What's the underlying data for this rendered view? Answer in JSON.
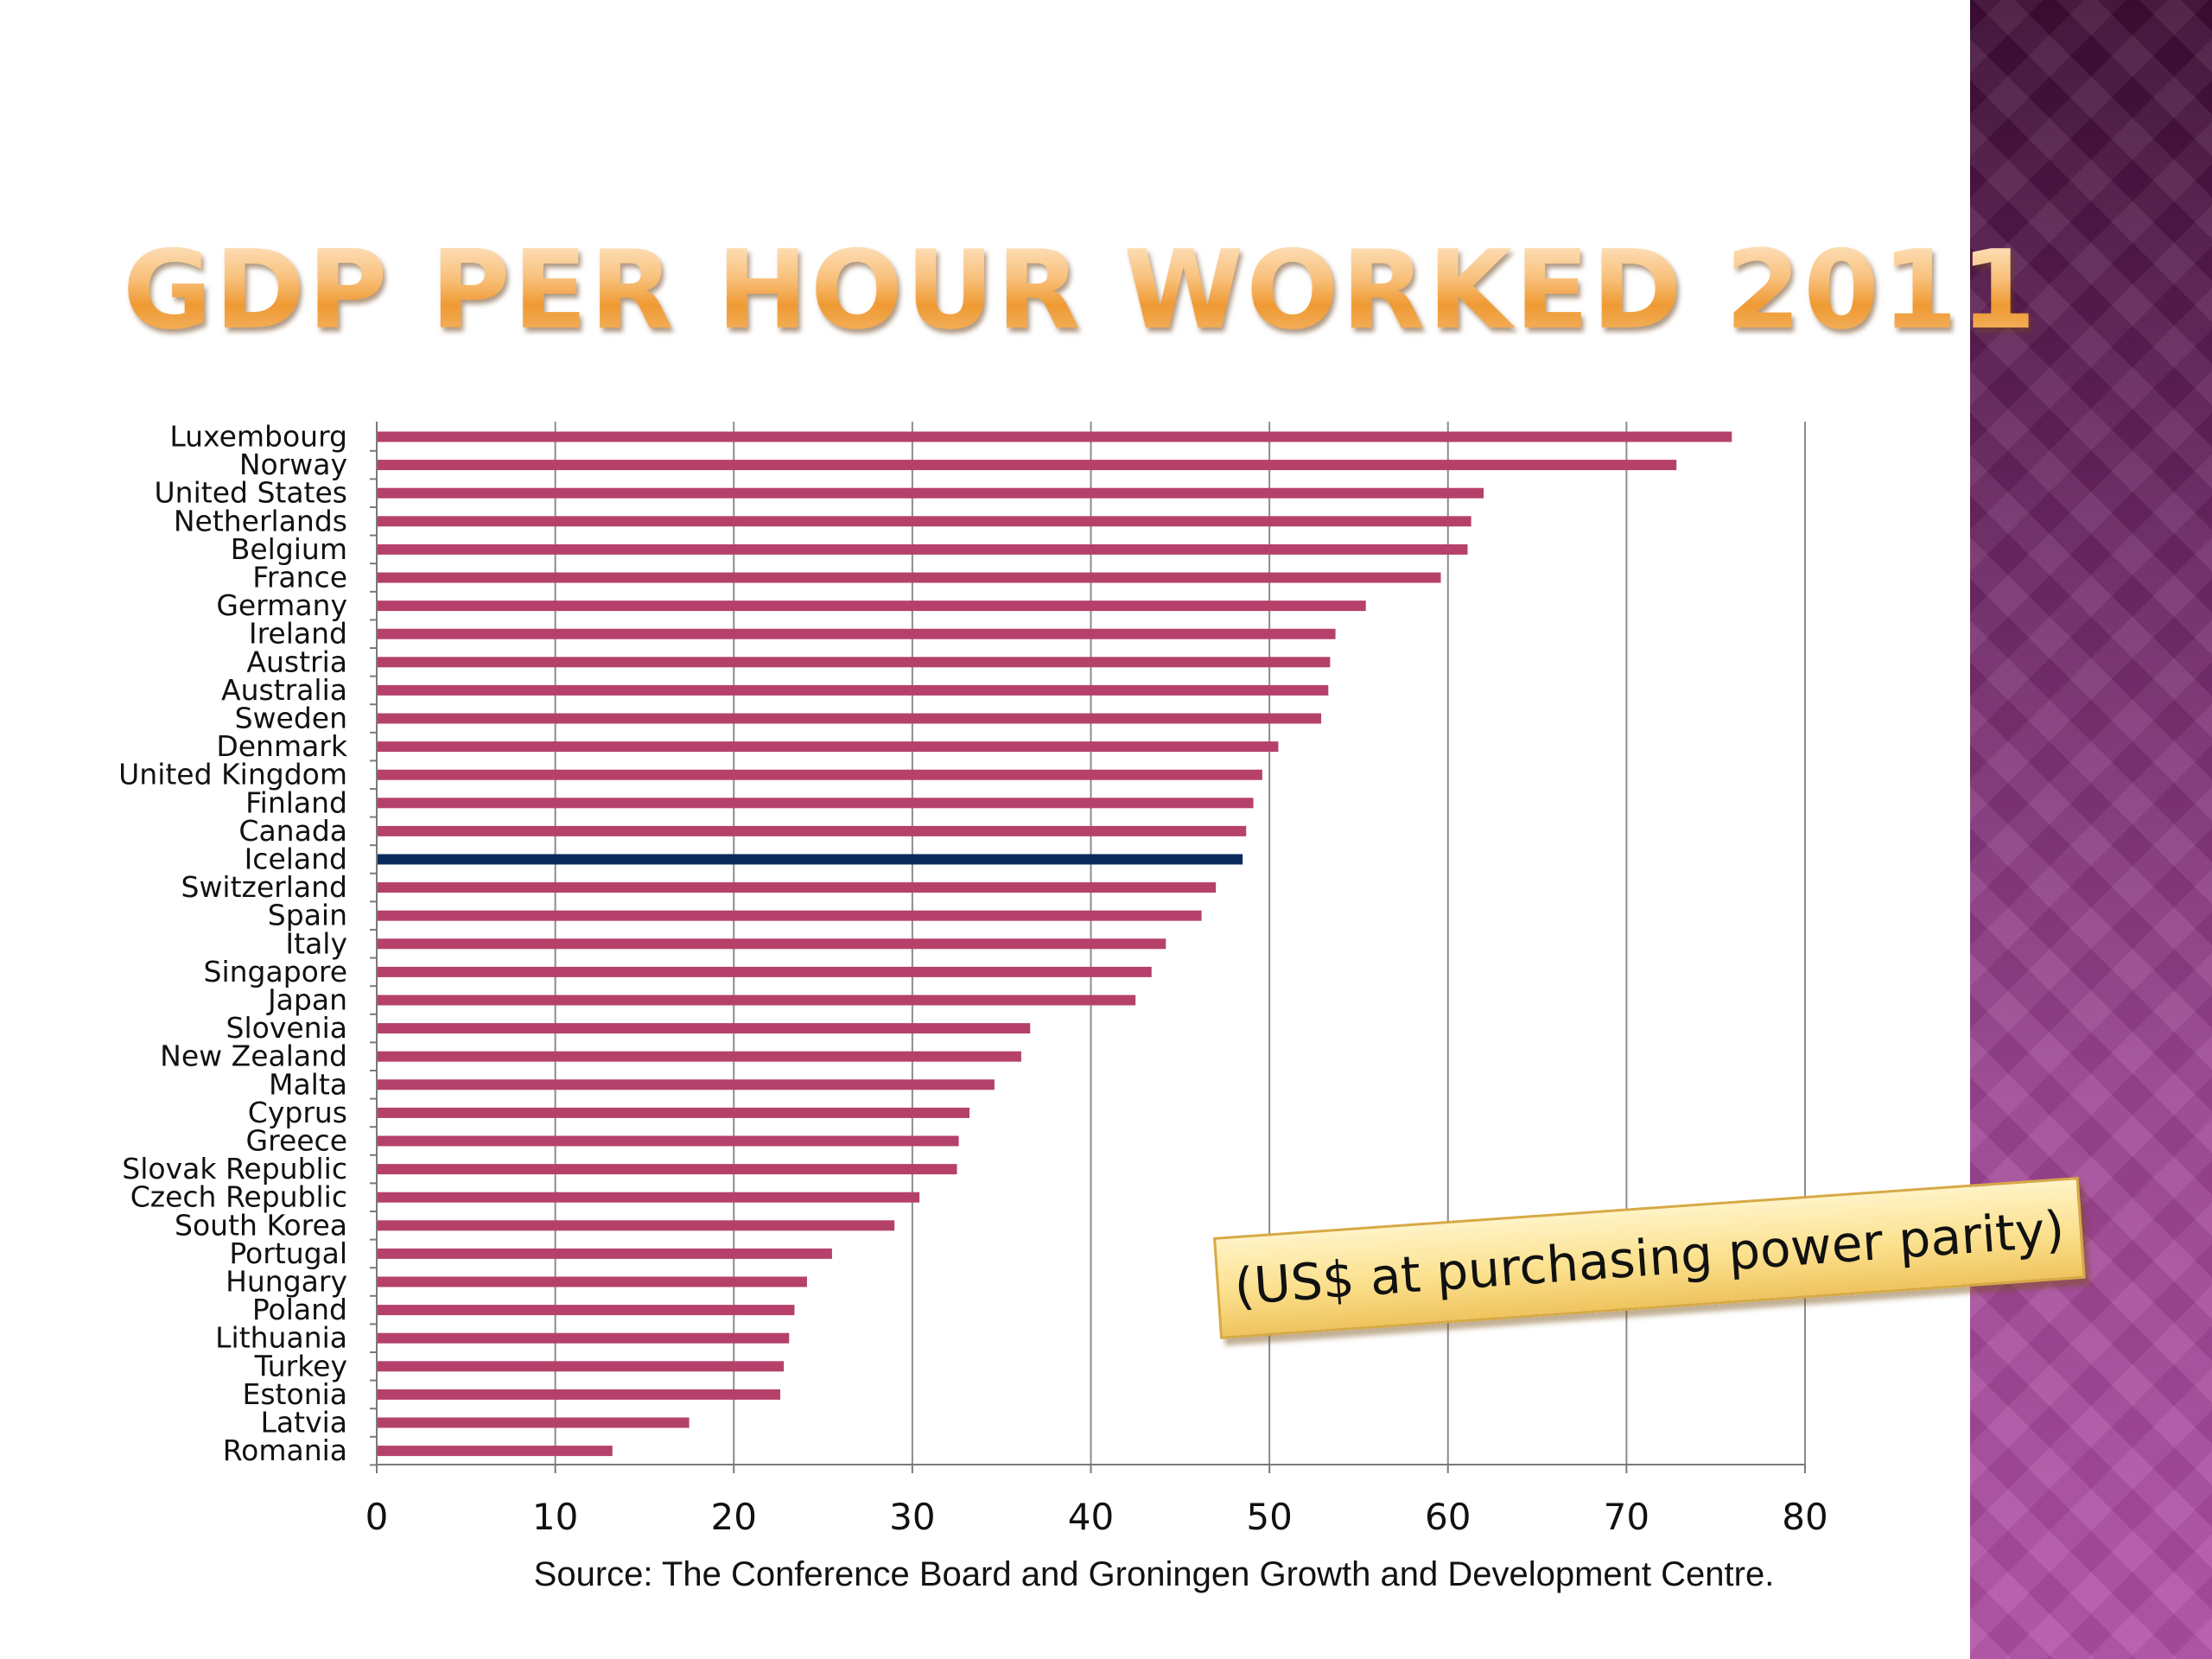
{
  "slide": {
    "title": "GDP per hour worked 2011",
    "unit_note": "(US$ at purchasing power parity)",
    "source": "Source: The Conference Board and Groningen Growth and Development Centre."
  },
  "chart_data": {
    "type": "bar",
    "orientation": "horizontal",
    "title": "GDP per hour worked 2011",
    "xlabel": "",
    "ylabel": "",
    "xlim": [
      0,
      80
    ],
    "xticks": [
      0,
      10,
      20,
      30,
      40,
      50,
      60,
      70,
      80
    ],
    "grid": true,
    "bar_color": "#b5416b",
    "highlight_color": "#0d2a5c",
    "highlight_category": "Iceland",
    "categories": [
      "Luxembourg",
      "Norway",
      "United States",
      "Netherlands",
      "Belgium",
      "France",
      "Germany",
      "Ireland",
      "Austria",
      "Australia",
      "Sweden",
      "Denmark",
      "United Kingdom",
      "Finland",
      "Canada",
      "Iceland",
      "Switzerland",
      "Spain",
      "Italy",
      "Singapore",
      "Japan",
      "Slovenia",
      "New Zealand",
      "Malta",
      "Cyprus",
      "Greece",
      "Slovak Republic",
      "Czech Republic",
      "South Korea",
      "Portugal",
      "Hungary",
      "Poland",
      "Lithuania",
      "Turkey",
      "Estonia",
      "Latvia",
      "Romania"
    ],
    "values": [
      75.9,
      72.8,
      62.0,
      61.3,
      61.1,
      59.6,
      55.4,
      53.7,
      53.4,
      53.3,
      52.9,
      50.5,
      49.6,
      49.1,
      48.7,
      48.5,
      47.0,
      46.2,
      44.2,
      43.4,
      42.5,
      36.6,
      36.1,
      34.6,
      33.2,
      32.6,
      32.5,
      30.4,
      29.0,
      25.5,
      24.1,
      23.4,
      23.1,
      22.8,
      22.6,
      17.5,
      13.2
    ]
  }
}
